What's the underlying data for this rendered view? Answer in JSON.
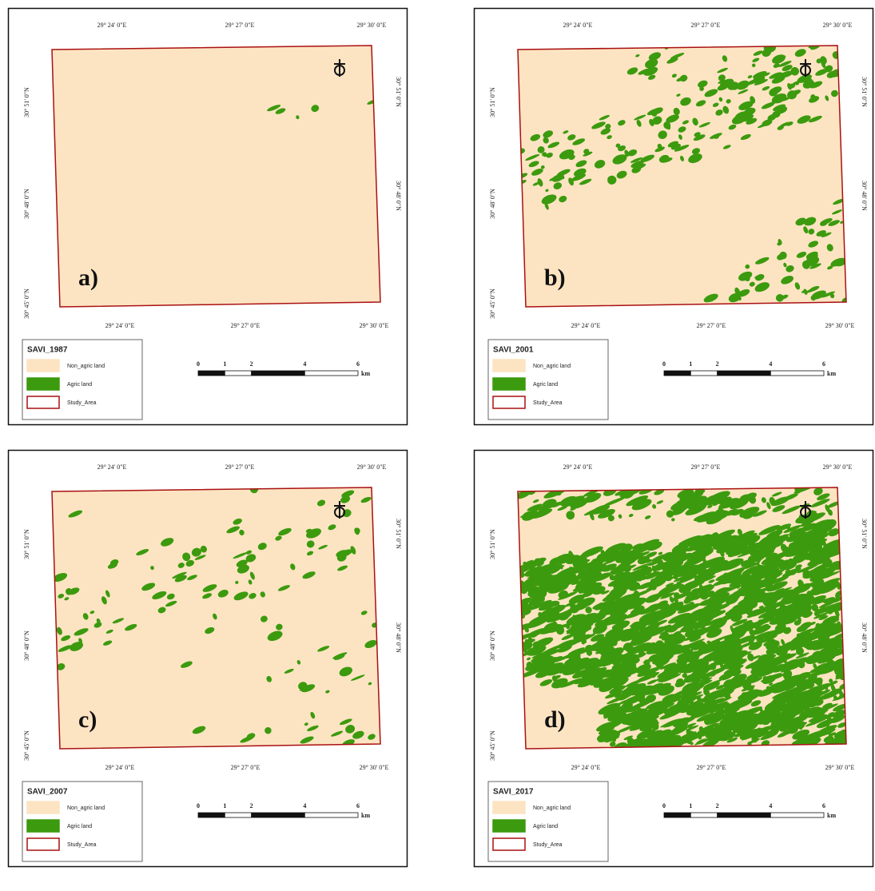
{
  "panels": [
    {
      "label": "a)",
      "legend": {
        "title": "SAVI_1987",
        "items": [
          "Non_agric land",
          "Agric land",
          "Study_Area"
        ]
      },
      "top_ticks": [
        "29° 24' 0\"E",
        "29° 27' 0\"E",
        "29° 30' 0\"E"
      ],
      "bottom_ticks": [
        "29° 24' 0\"E",
        "29° 27' 0\"E",
        "29° 30' 0\"E"
      ],
      "left_ticks": [
        "30° 51' 0\"N",
        "30° 48' 0\"N",
        "30° 45' 0\"N"
      ],
      "right_ticks": [
        "30° 51' 0\"N",
        "30° 48' 0\"N"
      ],
      "scale": {
        "labels": [
          0,
          1,
          2,
          4,
          6
        ],
        "unit": "km"
      }
    },
    {
      "label": "b)",
      "legend": {
        "title": "SAVI_2001",
        "items": [
          "Non_agric land",
          "Agric land",
          "Study_Area"
        ]
      },
      "top_ticks": [
        "29° 24' 0\"E",
        "29° 27' 0\"E",
        "29° 30' 0\"E"
      ],
      "bottom_ticks": [
        "29° 24' 0\"E",
        "29° 27' 0\"E",
        "29° 30' 0\"E"
      ],
      "left_ticks": [
        "30° 51' 0\"N",
        "30° 48' 0\"N",
        "30° 45' 0\"N"
      ],
      "right_ticks": [
        "30° 51' 0\"N",
        "30° 48' 0\"N"
      ],
      "scale": {
        "labels": [
          0,
          1,
          2,
          4,
          6
        ],
        "unit": "km"
      }
    },
    {
      "label": "c)",
      "legend": {
        "title": "SAVI_2007",
        "items": [
          "Non_agric land",
          "Agric land",
          "Study_Area"
        ]
      },
      "top_ticks": [
        "29° 24' 0\"E",
        "29° 27' 0\"E",
        "29° 30' 0\"E"
      ],
      "bottom_ticks": [
        "29° 24' 0\"E",
        "29° 27' 0\"E",
        "29° 30' 0\"E"
      ],
      "left_ticks": [
        "30° 51' 0\"N",
        "30° 48' 0\"N",
        "30° 45' 0\"N"
      ],
      "right_ticks": [
        "30° 51' 0\"N",
        "30° 48' 0\"N"
      ],
      "scale": {
        "labels": [
          0,
          1,
          2,
          4,
          6
        ],
        "unit": "km"
      }
    },
    {
      "label": "d)",
      "legend": {
        "title": "SAVI_2017",
        "items": [
          "Non_agric land",
          "Agric land",
          "Study_Area"
        ]
      },
      "top_ticks": [
        "29° 24' 0\"E",
        "29° 27' 0\"E",
        "29° 30' 0\"E"
      ],
      "bottom_ticks": [
        "29° 24' 0\"E",
        "29° 27' 0\"E",
        "29° 30' 0\"E"
      ],
      "left_ticks": [
        "30° 51' 0\"N",
        "30° 48' 0\"N",
        "30° 45' 0\"N"
      ],
      "right_ticks": [
        "30° 51' 0\"N",
        "30° 48' 0\"N"
      ],
      "scale": {
        "labels": [
          0,
          1,
          2,
          4,
          6
        ],
        "unit": "km"
      }
    }
  ]
}
